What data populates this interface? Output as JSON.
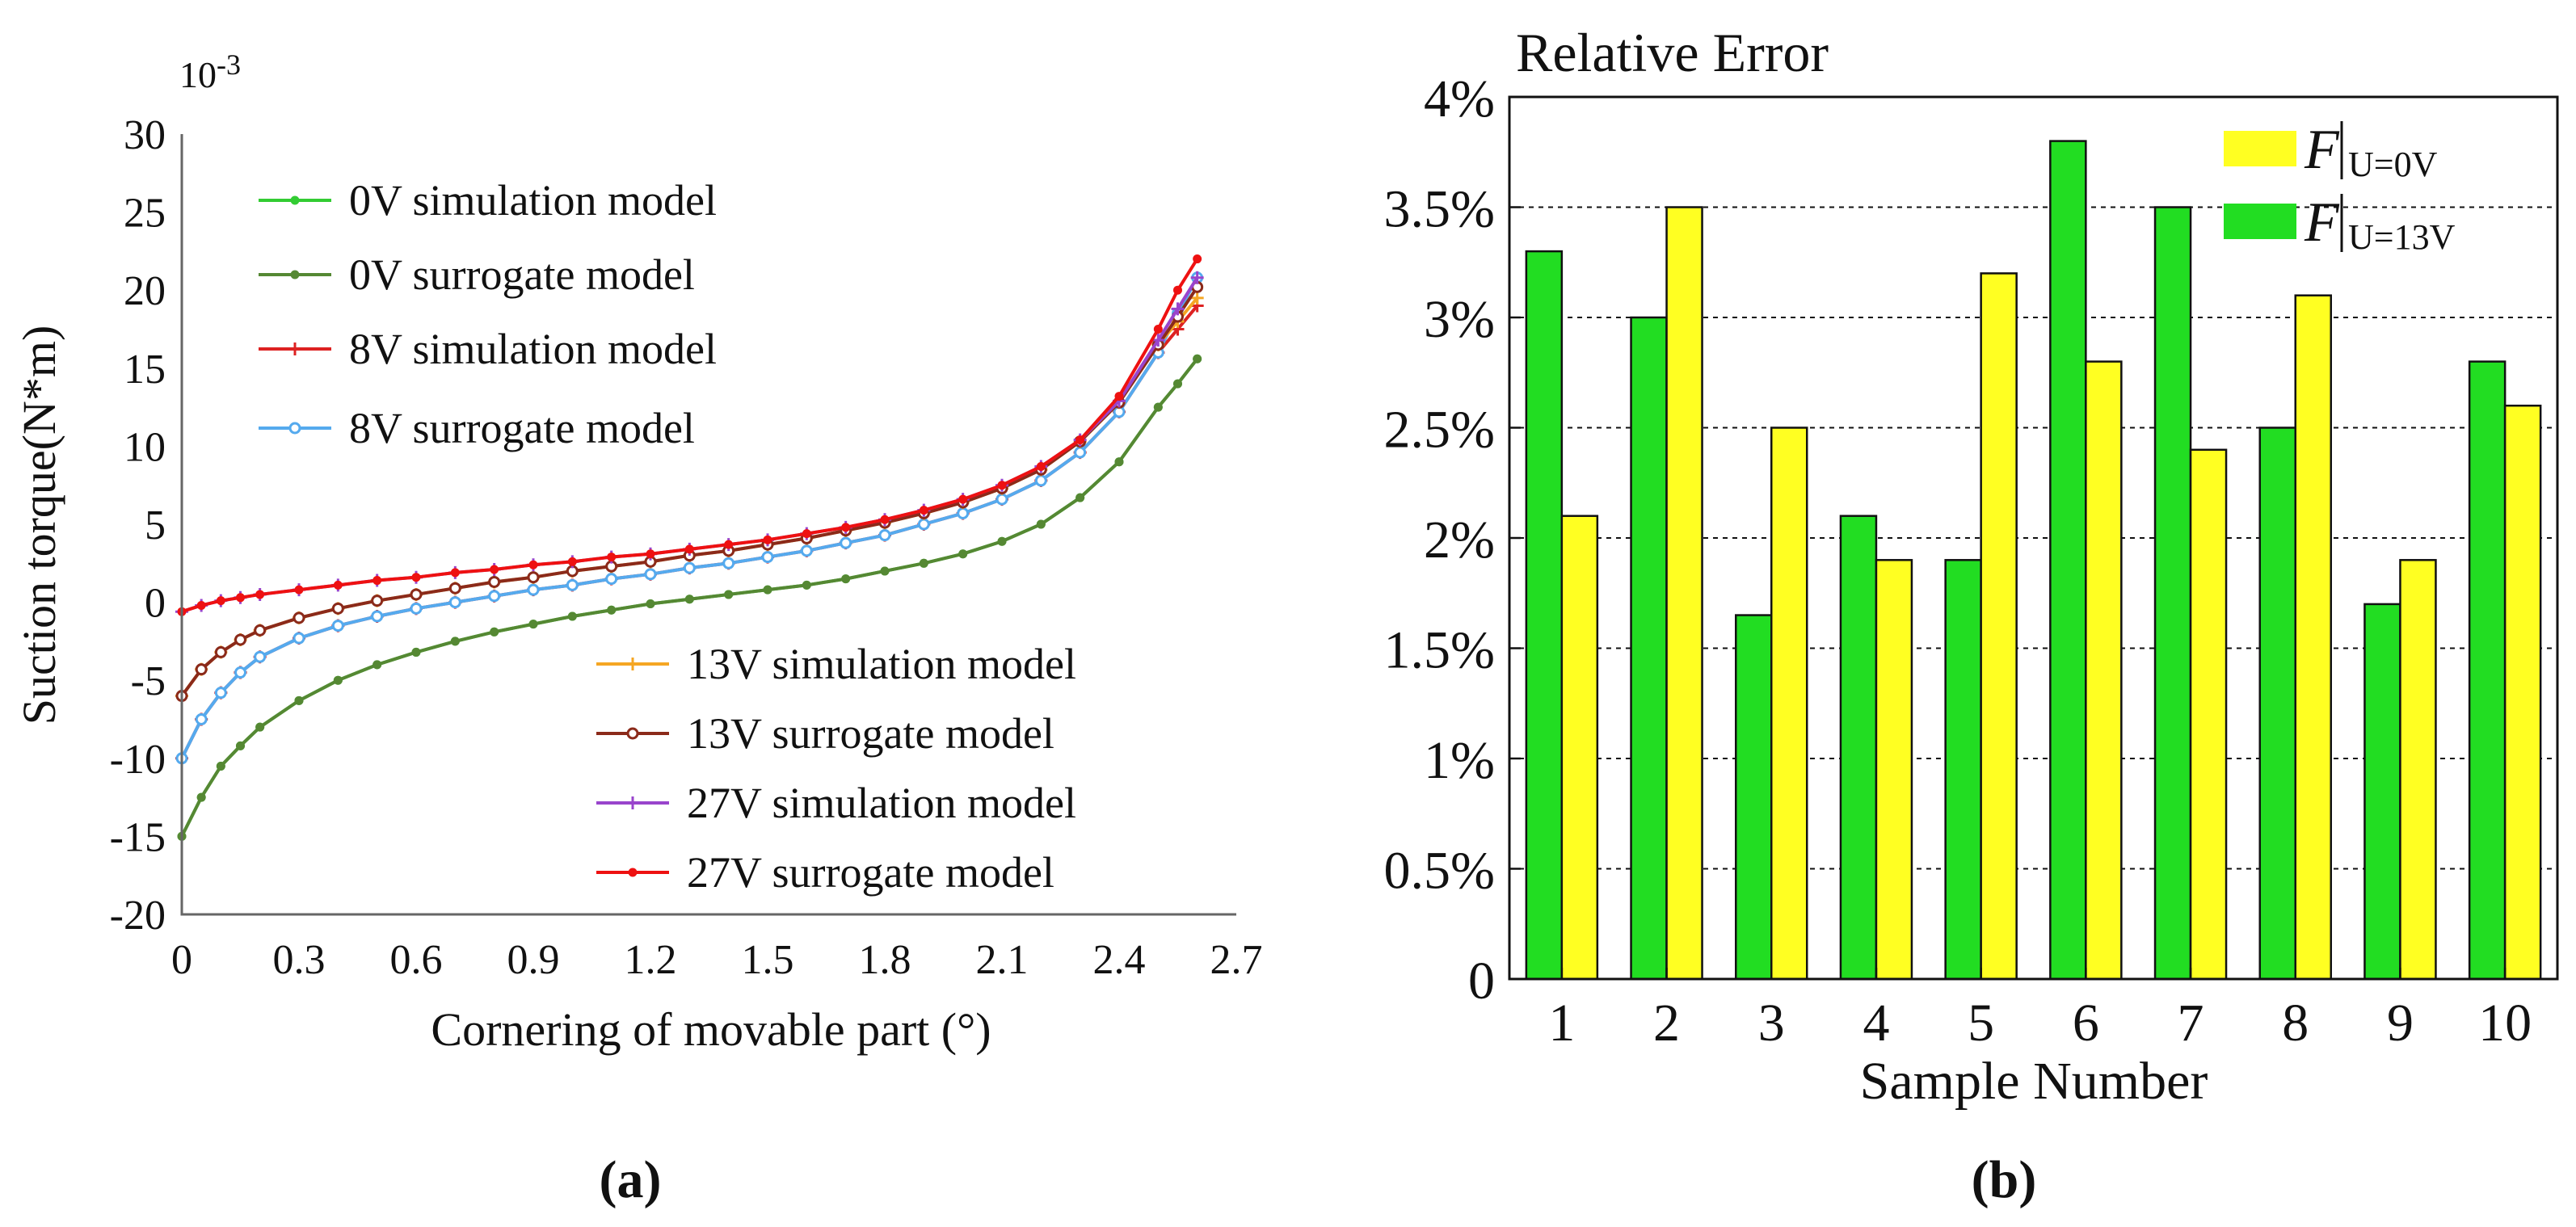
{
  "chart_data": [
    {
      "id": "a",
      "type": "line",
      "panel_label": "(a)",
      "title": "",
      "exponent_label": "10-3",
      "xlabel": "Cornering of movable part (°)",
      "ylabel": "Suction torque(N*m)",
      "xlim": [
        0,
        2.7
      ],
      "ylim": [
        -20,
        30
      ],
      "xticks": [
        "0",
        "0.3",
        "0.6",
        "0.9",
        "1.2",
        "1.5",
        "1.8",
        "2.1",
        "2.4",
        "2.7"
      ],
      "yticks": [
        "30",
        "25",
        "20",
        "15",
        "10",
        "5",
        "0",
        "-5",
        "-10",
        "-15",
        "-20"
      ],
      "grid": false,
      "legend_position": "upper-left and lower-right",
      "series": [
        {
          "name": "0V simulation model",
          "color": "#33cc33",
          "marker": "dot",
          "x": [
            0,
            0.05,
            0.1,
            0.15,
            0.2,
            0.3,
            0.4,
            0.5,
            0.6,
            0.7,
            0.8,
            0.9,
            1.0,
            1.1,
            1.2,
            1.3,
            1.4,
            1.5,
            1.6,
            1.7,
            1.8,
            1.9,
            2.0,
            2.1,
            2.2,
            2.3,
            2.4,
            2.5,
            2.55,
            2.6
          ],
          "y": [
            -15.0,
            -12.5,
            -10.5,
            -9.2,
            -8.0,
            -6.3,
            -5.0,
            -4.0,
            -3.2,
            -2.5,
            -1.9,
            -1.4,
            -0.9,
            -0.5,
            -0.1,
            0.2,
            0.5,
            0.8,
            1.1,
            1.5,
            2.0,
            2.5,
            3.1,
            3.9,
            5.0,
            6.7,
            9.0,
            12.5,
            14.0,
            15.6
          ]
        },
        {
          "name": "0V surrogate model",
          "color": "#558833",
          "marker": "dot",
          "x": [
            0,
            0.05,
            0.1,
            0.15,
            0.2,
            0.3,
            0.4,
            0.5,
            0.6,
            0.7,
            0.8,
            0.9,
            1.0,
            1.1,
            1.2,
            1.3,
            1.4,
            1.5,
            1.6,
            1.7,
            1.8,
            1.9,
            2.0,
            2.1,
            2.2,
            2.3,
            2.4,
            2.5,
            2.55,
            2.6
          ],
          "y": [
            -15.0,
            -12.5,
            -10.5,
            -9.2,
            -8.0,
            -6.3,
            -5.0,
            -4.0,
            -3.2,
            -2.5,
            -1.9,
            -1.4,
            -0.9,
            -0.5,
            -0.1,
            0.2,
            0.5,
            0.8,
            1.1,
            1.5,
            2.0,
            2.5,
            3.1,
            3.9,
            5.0,
            6.7,
            9.0,
            12.5,
            14.0,
            15.6
          ]
        },
        {
          "name": "8V simulation model",
          "color": "#dd2222",
          "marker": "plus",
          "x": [
            0,
            0.05,
            0.1,
            0.15,
            0.2,
            0.3,
            0.4,
            0.5,
            0.6,
            0.7,
            0.8,
            0.9,
            1.0,
            1.1,
            1.2,
            1.3,
            1.4,
            1.5,
            1.6,
            1.7,
            1.8,
            1.9,
            2.0,
            2.1,
            2.2,
            2.3,
            2.4,
            2.5,
            2.55,
            2.6
          ],
          "y": [
            -10.0,
            -7.5,
            -5.8,
            -4.5,
            -3.5,
            -2.3,
            -1.5,
            -0.9,
            -0.4,
            0.0,
            0.4,
            0.8,
            1.1,
            1.5,
            1.8,
            2.2,
            2.5,
            2.9,
            3.3,
            3.8,
            4.3,
            5.0,
            5.7,
            6.6,
            7.8,
            9.6,
            12.2,
            16.0,
            17.5,
            19.0
          ]
        },
        {
          "name": "8V surrogate model",
          "color": "#55aaee",
          "marker": "circle",
          "x": [
            0,
            0.05,
            0.1,
            0.15,
            0.2,
            0.3,
            0.4,
            0.5,
            0.6,
            0.7,
            0.8,
            0.9,
            1.0,
            1.1,
            1.2,
            1.3,
            1.4,
            1.5,
            1.6,
            1.7,
            1.8,
            1.9,
            2.0,
            2.1,
            2.2,
            2.3,
            2.4,
            2.5,
            2.55,
            2.6
          ],
          "y": [
            -10.0,
            -7.5,
            -5.8,
            -4.5,
            -3.5,
            -2.3,
            -1.5,
            -0.9,
            -0.4,
            0.0,
            0.4,
            0.8,
            1.1,
            1.5,
            1.8,
            2.2,
            2.5,
            2.9,
            3.3,
            3.8,
            4.3,
            5.0,
            5.7,
            6.6,
            7.8,
            9.6,
            12.2,
            16.0,
            18.5,
            20.8
          ]
        },
        {
          "name": "13V simulation model",
          "color": "#f5a623",
          "marker": "plus",
          "x": [
            0,
            0.05,
            0.1,
            0.15,
            0.2,
            0.3,
            0.4,
            0.5,
            0.6,
            0.7,
            0.8,
            0.9,
            1.0,
            1.1,
            1.2,
            1.3,
            1.4,
            1.5,
            1.6,
            1.7,
            1.8,
            1.9,
            2.0,
            2.1,
            2.2,
            2.3,
            2.4,
            2.5,
            2.55,
            2.6
          ],
          "y": [
            -6.0,
            -4.3,
            -3.2,
            -2.4,
            -1.8,
            -1.0,
            -0.4,
            0.1,
            0.5,
            0.9,
            1.3,
            1.6,
            2.0,
            2.3,
            2.6,
            3.0,
            3.3,
            3.7,
            4.1,
            4.6,
            5.1,
            5.7,
            6.4,
            7.3,
            8.5,
            10.3,
            12.8,
            16.5,
            18.0,
            19.5
          ]
        },
        {
          "name": "13V surrogate model",
          "color": "#8b2a1a",
          "marker": "open-circle",
          "x": [
            0,
            0.05,
            0.1,
            0.15,
            0.2,
            0.3,
            0.4,
            0.5,
            0.6,
            0.7,
            0.8,
            0.9,
            1.0,
            1.1,
            1.2,
            1.3,
            1.4,
            1.5,
            1.6,
            1.7,
            1.8,
            1.9,
            2.0,
            2.1,
            2.2,
            2.3,
            2.4,
            2.5,
            2.55,
            2.6
          ],
          "y": [
            -6.0,
            -4.3,
            -3.2,
            -2.4,
            -1.8,
            -1.0,
            -0.4,
            0.1,
            0.5,
            0.9,
            1.3,
            1.6,
            2.0,
            2.3,
            2.6,
            3.0,
            3.3,
            3.7,
            4.1,
            4.6,
            5.1,
            5.7,
            6.4,
            7.3,
            8.5,
            10.3,
            12.8,
            16.5,
            18.3,
            20.2
          ]
        },
        {
          "name": "27V simulation model",
          "color": "#9944cc",
          "marker": "plus",
          "x": [
            0,
            0.05,
            0.1,
            0.15,
            0.2,
            0.3,
            0.4,
            0.5,
            0.6,
            0.7,
            0.8,
            0.9,
            1.0,
            1.1,
            1.2,
            1.3,
            1.4,
            1.5,
            1.6,
            1.7,
            1.8,
            1.9,
            2.0,
            2.1,
            2.2,
            2.3,
            2.4,
            2.5,
            2.55,
            2.6
          ],
          "y": [
            -0.6,
            -0.2,
            0.1,
            0.3,
            0.5,
            0.8,
            1.1,
            1.4,
            1.6,
            1.9,
            2.1,
            2.4,
            2.6,
            2.9,
            3.1,
            3.4,
            3.7,
            4.0,
            4.4,
            4.8,
            5.3,
            5.9,
            6.6,
            7.5,
            8.7,
            10.4,
            12.9,
            16.8,
            18.8,
            20.8
          ]
        },
        {
          "name": "27V surrogate model",
          "color": "#ee1111",
          "marker": "dot",
          "x": [
            0,
            0.05,
            0.1,
            0.15,
            0.2,
            0.3,
            0.4,
            0.5,
            0.6,
            0.7,
            0.8,
            0.9,
            1.0,
            1.1,
            1.2,
            1.3,
            1.4,
            1.5,
            1.6,
            1.7,
            1.8,
            1.9,
            2.0,
            2.1,
            2.2,
            2.3,
            2.4,
            2.5,
            2.55,
            2.6
          ],
          "y": [
            -0.6,
            -0.2,
            0.1,
            0.3,
            0.5,
            0.8,
            1.1,
            1.4,
            1.6,
            1.9,
            2.1,
            2.4,
            2.6,
            2.9,
            3.1,
            3.4,
            3.7,
            4.0,
            4.4,
            4.8,
            5.3,
            5.9,
            6.6,
            7.5,
            8.7,
            10.4,
            13.2,
            17.5,
            20.0,
            22.0
          ]
        }
      ]
    },
    {
      "id": "b",
      "type": "bar",
      "panel_label": "(b)",
      "title": "Relative Error",
      "xlabel": "Sample Number",
      "ylabel": "",
      "ylim": [
        0,
        4
      ],
      "yticks": [
        "0",
        "0.5%",
        "1%",
        "1.5%",
        "2%",
        "2.5%",
        "3%",
        "3.5%",
        "4%"
      ],
      "grid": true,
      "legend_position": "top-right",
      "categories": [
        "1",
        "2",
        "3",
        "4",
        "5",
        "6",
        "7",
        "8",
        "9",
        "10"
      ],
      "series": [
        {
          "name": "F",
          "subscript": "U=13V",
          "color": "#22dd22",
          "values": [
            3.3,
            3.0,
            1.65,
            2.1,
            1.9,
            3.8,
            3.5,
            2.5,
            1.7,
            2.8
          ]
        },
        {
          "name": "F",
          "subscript": "U=0V",
          "color": "#ffff22",
          "values": [
            2.1,
            3.5,
            2.5,
            1.9,
            3.2,
            2.8,
            2.4,
            3.1,
            1.9,
            2.6
          ]
        }
      ],
      "legend_order": [
        1,
        0
      ]
    }
  ]
}
